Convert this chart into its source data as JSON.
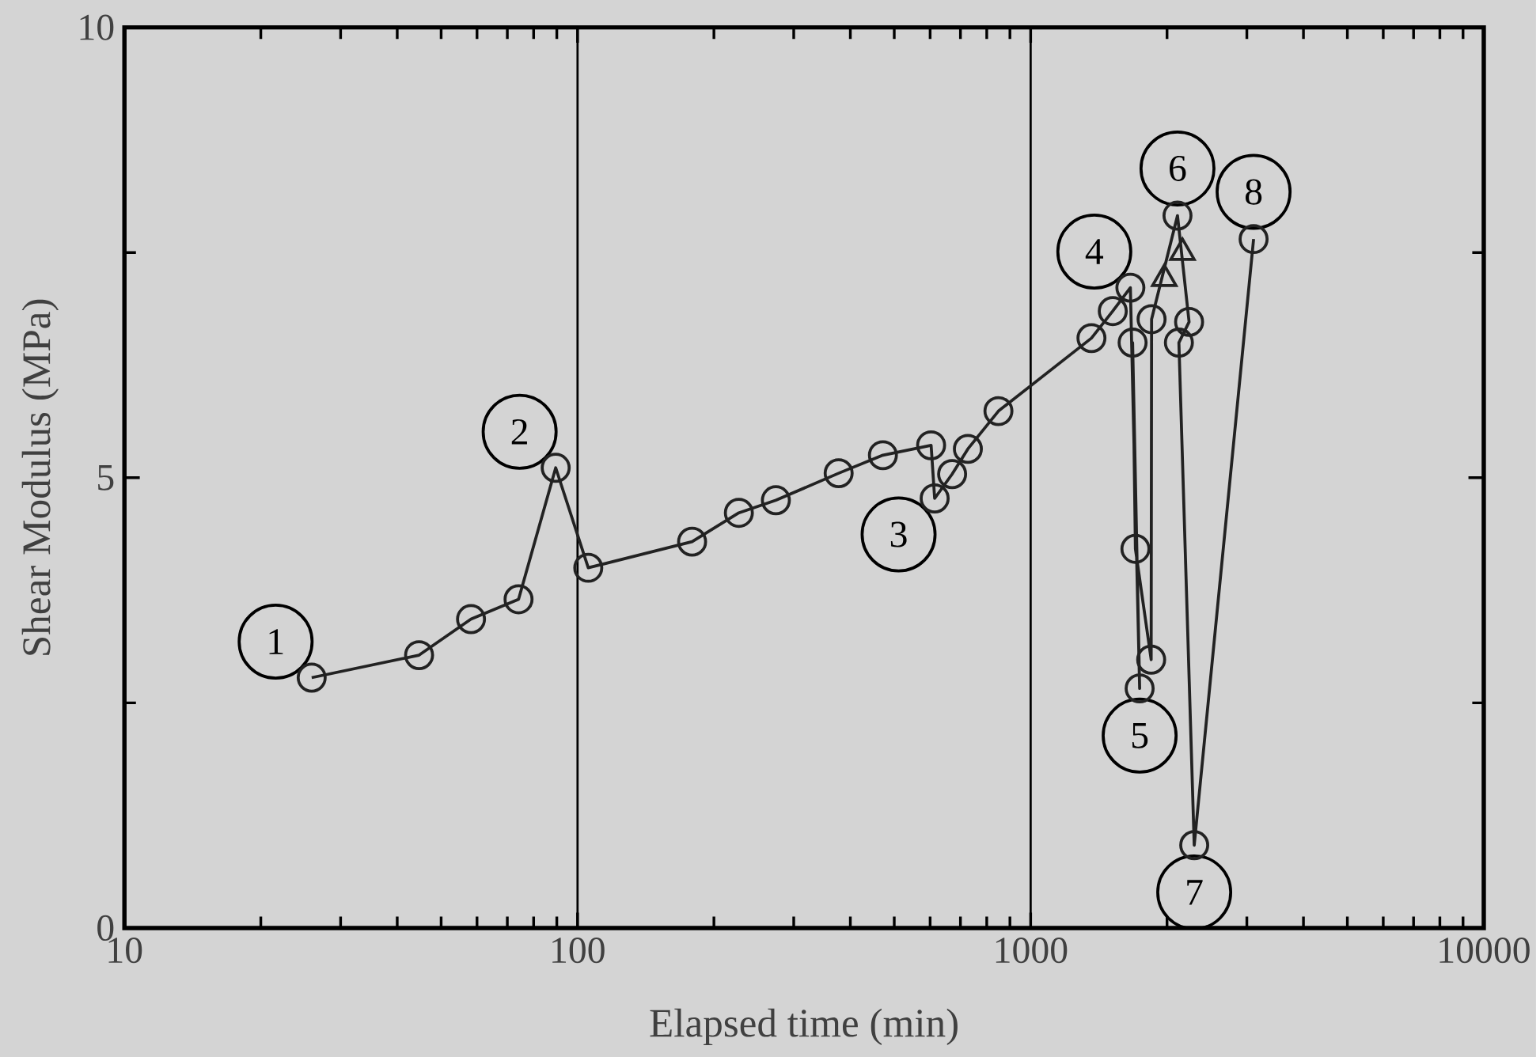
{
  "chart_data": {
    "type": "line",
    "xlabel": "Elapsed time (min)",
    "ylabel": "Shear Modulus (MPa)",
    "log": "x",
    "xlim": [
      10,
      10000
    ],
    "xticks": [
      10,
      100,
      1000,
      10000
    ],
    "ylim": [
      0,
      10
    ],
    "yticks": [
      0,
      {
        "value": 2.5,
        "label": null
      },
      5,
      {
        "value": 7.5,
        "label": null
      },
      10
    ],
    "grid": "x",
    "marker": "circle",
    "line_style": "solid",
    "series": [
      {
        "color": "#222222",
        "x": [
          25.9,
          44.7,
          58.2,
          74.1,
          89.5,
          105.6,
          179,
          227,
          274,
          377,
          472,
          603,
          614,
          671,
          727,
          849,
          1362,
          1518,
          1660,
          1740,
          1679,
          1703,
          1845,
          1849,
          2109,
          2237,
          2124,
          2296,
          3105
        ],
        "values": [
          2.78,
          3.03,
          3.43,
          3.65,
          5.11,
          4.0,
          4.29,
          4.61,
          4.75,
          5.05,
          5.25,
          5.36,
          4.77,
          5.04,
          5.32,
          5.74,
          6.55,
          6.85,
          7.11,
          2.66,
          6.5,
          4.21,
          2.98,
          6.76,
          7.91,
          6.73,
          6.5,
          0.92,
          7.65
        ]
      },
      {
        "type": "scatter",
        "marker": "triangle",
        "color": "#222222",
        "x": [
          1972,
          2163
        ],
        "values": [
          7.21,
          7.5
        ]
      }
    ],
    "annotations": [
      {
        "text": "1",
        "x": 25.9,
        "y": 2.78
      },
      {
        "text": "2",
        "x": 89.5,
        "y": 5.11
      },
      {
        "text": "3",
        "x": 614,
        "y": 4.77
      },
      {
        "text": "4",
        "x": 1660,
        "y": 7.11
      },
      {
        "text": "5",
        "x": 1740,
        "y": 2.66
      },
      {
        "text": "6",
        "x": 2109,
        "y": 7.91
      },
      {
        "text": "7",
        "x": 2296,
        "y": 0.92
      },
      {
        "text": "8",
        "x": 3105,
        "y": 7.65
      }
    ]
  }
}
